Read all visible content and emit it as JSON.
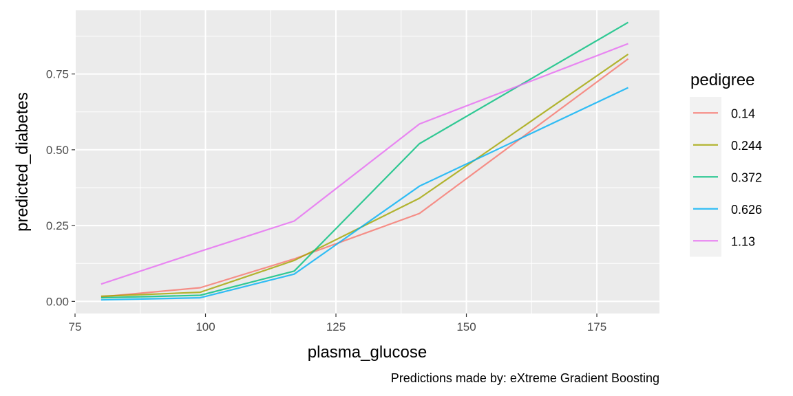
{
  "chart_data": {
    "type": "line",
    "xlabel": "plasma_glucose",
    "ylabel": "predicted_diabetes",
    "caption": "Predictions made by: eXtreme Gradient Boosting",
    "xlim": [
      75,
      187
    ],
    "ylim": [
      -0.04,
      0.96
    ],
    "x_ticks": [
      75,
      100,
      125,
      150,
      175
    ],
    "x_tick_labels": [
      "75",
      "100",
      "125",
      "150",
      "175"
    ],
    "y_ticks": [
      0,
      0.25,
      0.5,
      0.75
    ],
    "y_tick_labels": [
      "0.00",
      "0.25",
      "0.50",
      "0.75"
    ],
    "grid": true,
    "legend": {
      "title": "pedigree",
      "position": "right"
    },
    "x": [
      80,
      99,
      117,
      141,
      181
    ],
    "series": [
      {
        "name": "0.14",
        "color": "#F8766D",
        "values": [
          0.015,
          0.045,
          0.14,
          0.29,
          0.8
        ]
      },
      {
        "name": "0.244",
        "color": "#A3A500",
        "values": [
          0.017,
          0.03,
          0.135,
          0.34,
          0.815
        ]
      },
      {
        "name": "0.372",
        "color": "#00BF7D",
        "values": [
          0.012,
          0.02,
          0.1,
          0.52,
          0.92
        ]
      },
      {
        "name": "0.626",
        "color": "#00B0F6",
        "values": [
          0.005,
          0.012,
          0.09,
          0.38,
          0.705
        ]
      },
      {
        "name": "1.13",
        "color": "#E76BF3",
        "values": [
          0.057,
          0.165,
          0.265,
          0.585,
          0.85
        ]
      }
    ]
  }
}
